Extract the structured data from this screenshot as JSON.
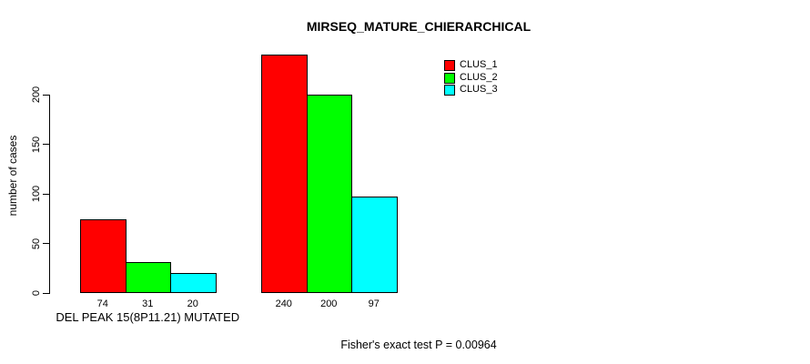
{
  "chart_data": {
    "type": "bar",
    "title": "MIRSEQ_MATURE_CHIERARCHICAL",
    "ylabel": "number of cases",
    "xlabel": "",
    "ylim": [
      0,
      245
    ],
    "yticks": [
      0,
      50,
      100,
      150,
      200
    ],
    "grid": false,
    "legend_position": "top-right",
    "categories": [
      "DEL PEAK 15(8P11.21) MUTATED",
      ""
    ],
    "series": [
      {
        "name": "CLUS_1",
        "color": "#FF0000",
        "values": [
          74,
          240
        ]
      },
      {
        "name": "CLUS_2",
        "color": "#00FF00",
        "values": [
          31,
          200
        ]
      },
      {
        "name": "CLUS_3",
        "color": "#00FFFF",
        "values": [
          20,
          97
        ]
      }
    ],
    "annotation": "Fisher's exact test P = 0.00964"
  }
}
